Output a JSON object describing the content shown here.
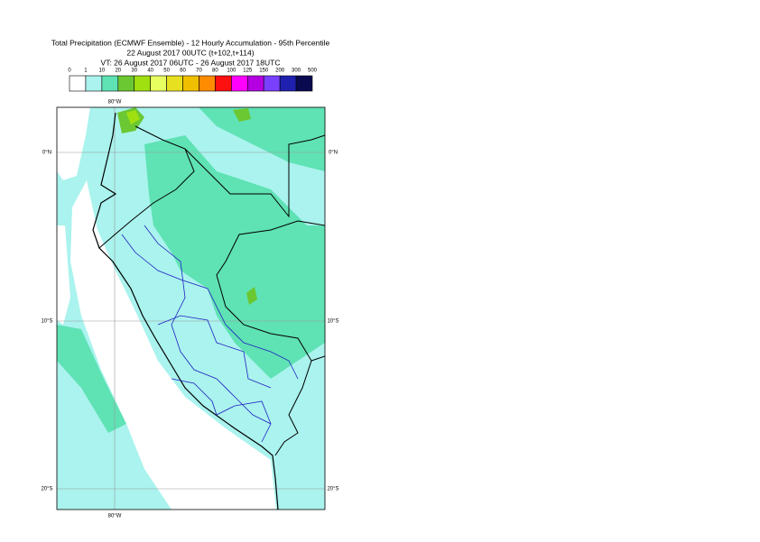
{
  "header": {
    "title": "Total Precipitation (ECMWF Ensemble) - 12 Hourly Accumulation - 95th Percentile",
    "base_time": "22 August 2017 00UTC (t+102,t+114)",
    "valid_time": "VT: 26 August 2017 06UTC - 26 August 2017 18UTC"
  },
  "legend": {
    "labels": [
      0,
      1,
      10,
      20,
      30,
      40,
      50,
      60,
      70,
      80,
      100,
      125,
      150,
      200,
      300,
      500
    ],
    "colors": [
      "#ffffff",
      "#aaf3ee",
      "#5fe2b4",
      "#6cc832",
      "#a0e010",
      "#e8ff60",
      "#e6e020",
      "#f0c000",
      "#ff8c00",
      "#ff1010",
      "#ff00ff",
      "#b400e0",
      "#7a40ff",
      "#2020b0",
      "#0a0a50"
    ]
  },
  "map": {
    "lon_label_top": "80°W",
    "lon_label_bottom": "80°W",
    "lat_labels": [
      "0°N",
      "10°S",
      "20°S"
    ]
  }
}
